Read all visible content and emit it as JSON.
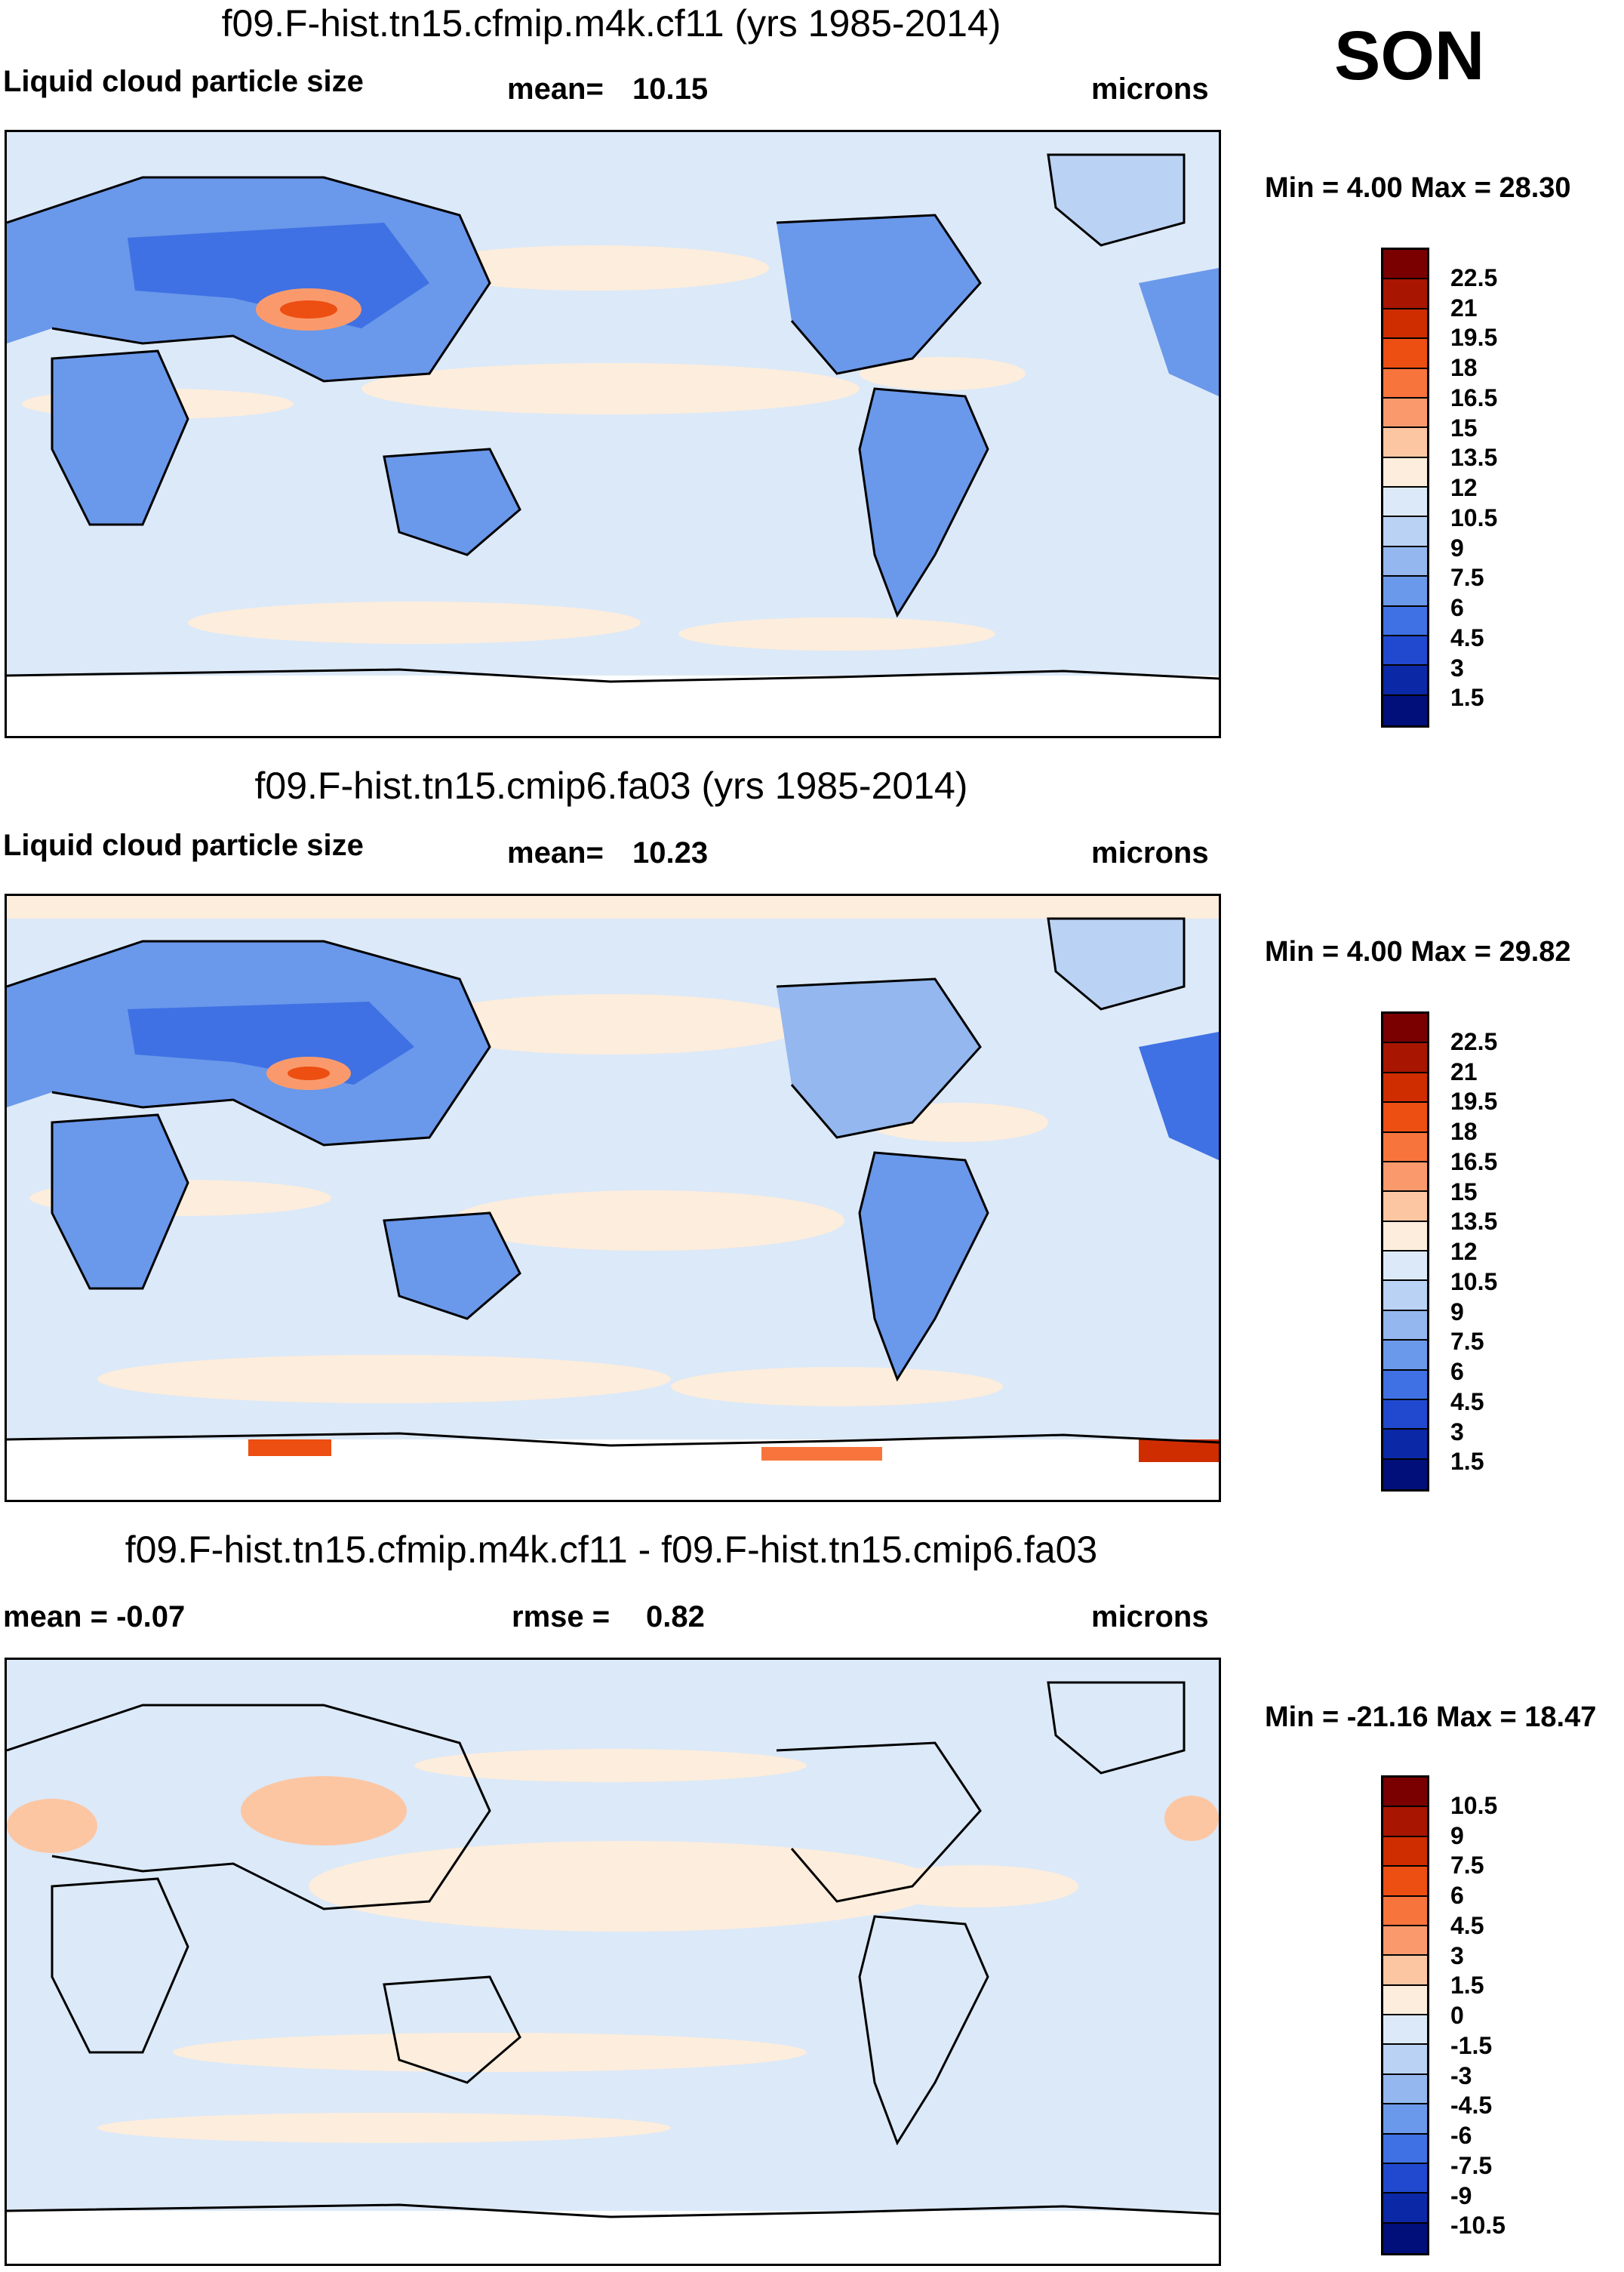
{
  "season": "SON",
  "units_label": "microns",
  "panels": [
    {
      "title": "f09.F-hist.tn15.cfmip.m4k.cf11 (yrs 1985-2014)",
      "left_label": "Liquid cloud particle size",
      "stat1_label": "mean=",
      "stat1_value": "10.15",
      "units": "microns",
      "minmax_text": "Min =   4.00 Max =  28.30",
      "colorbar_labels": [
        "22.5",
        "21",
        "19.5",
        "18",
        "16.5",
        "15",
        "13.5",
        "12",
        "10.5",
        "9",
        "7.5",
        "6",
        "4.5",
        "3",
        "1.5"
      ]
    },
    {
      "title": "f09.F-hist.tn15.cmip6.fa03 (yrs 1985-2014)",
      "left_label": "Liquid cloud particle size",
      "stat1_label": "mean=",
      "stat1_value": "10.23",
      "units": "microns",
      "minmax_text": "Min =   4.00 Max =  29.82",
      "colorbar_labels": [
        "22.5",
        "21",
        "19.5",
        "18",
        "16.5",
        "15",
        "13.5",
        "12",
        "10.5",
        "9",
        "7.5",
        "6",
        "4.5",
        "3",
        "1.5"
      ]
    },
    {
      "title": "f09.F-hist.tn15.cfmip.m4k.cf11 - f09.F-hist.tn15.cmip6.fa03",
      "left_label": "mean =  -0.07",
      "stat1_label": "rmse =",
      "stat1_value": "0.82",
      "units": "microns",
      "minmax_text": "Min = -21.16 Max =  18.47",
      "colorbar_labels": [
        "10.5",
        "9",
        "7.5",
        "6",
        "4.5",
        "3",
        "1.5",
        "0",
        "-1.5",
        "-3",
        "-4.5",
        "-6",
        "-7.5",
        "-9",
        "-10.5"
      ]
    }
  ],
  "palettes": {
    "abs": [
      "#7a0000",
      "#a81500",
      "#cf2d00",
      "#ed4e12",
      "#f7743c",
      "#fa9a6c",
      "#fcc6a3",
      "#fdeddc",
      "#dce9f8",
      "#bad2f3",
      "#93b7ee",
      "#6a98ea",
      "#3f71e4",
      "#2049cf",
      "#0b28a6",
      "#000f7a"
    ],
    "diff": [
      "#7a0000",
      "#a81500",
      "#cf2d00",
      "#ed4e12",
      "#f7743c",
      "#fa9a6c",
      "#fcc6a3",
      "#fdeddc",
      "#dce9f8",
      "#bad2f3",
      "#93b7ee",
      "#6a98ea",
      "#3f71e4",
      "#2049cf",
      "#0b28a6",
      "#000f7a"
    ]
  }
}
